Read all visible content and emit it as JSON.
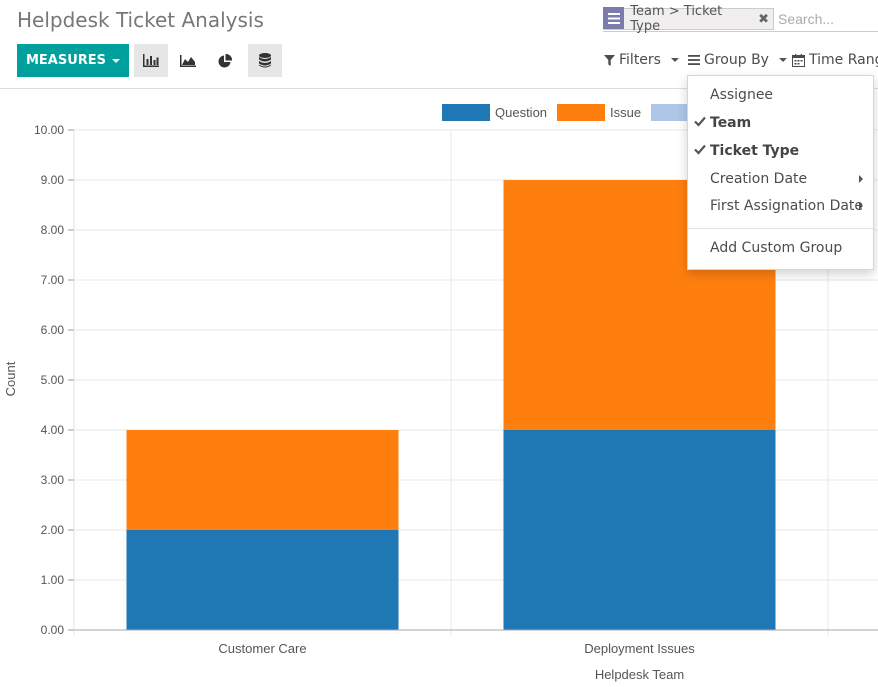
{
  "page": {
    "title": "Helpdesk Ticket Analysis"
  },
  "search": {
    "facet_label": "Team > Ticket Type",
    "placeholder": "Search..."
  },
  "toolbar": {
    "measures_label": "MEASURES",
    "views": [
      {
        "name": "bar-chart",
        "icon": "bar-chart-icon",
        "active": true
      },
      {
        "name": "line-chart",
        "icon": "area-chart-icon",
        "active": false
      },
      {
        "name": "pie-chart",
        "icon": "pie-chart-icon",
        "active": false
      },
      {
        "name": "stacked",
        "icon": "database-icon",
        "active": true
      }
    ],
    "filters_label": "Filters",
    "groupby_label": "Group By",
    "timerange_label": "Time Rang"
  },
  "groupby_menu": {
    "items": [
      {
        "label": "Assignee",
        "checked": false,
        "submenu": false
      },
      {
        "label": "Team",
        "checked": true,
        "submenu": false
      },
      {
        "label": "Ticket Type",
        "checked": true,
        "submenu": false
      },
      {
        "label": "Creation Date",
        "checked": false,
        "submenu": true
      },
      {
        "label": "First Assignation Date",
        "checked": false,
        "submenu": true
      }
    ],
    "custom_group_label": "Add Custom Group"
  },
  "colors": {
    "accent": "#00a09d",
    "question": "#1f77b4",
    "issue": "#ff7f0e",
    "third_series": "#aec7e8"
  },
  "chart_data": {
    "type": "bar",
    "stacked": true,
    "categories": [
      "Customer Care",
      "Deployment Issues"
    ],
    "series": [
      {
        "name": "Question",
        "values": [
          2,
          4
        ],
        "color": "#1f77b4"
      },
      {
        "name": "Issue",
        "values": [
          2,
          5
        ],
        "color": "#ff7f0e"
      },
      {
        "name": "",
        "values": [
          0,
          0
        ],
        "color": "#aec7e8"
      }
    ],
    "xlabel": "Helpdesk Team",
    "ylabel": "Count",
    "ylim": [
      0,
      10
    ],
    "yticks": [
      "0.00",
      "1.00",
      "2.00",
      "3.00",
      "4.00",
      "5.00",
      "6.00",
      "7.00",
      "8.00",
      "9.00",
      "10.00"
    ],
    "grid": true,
    "legend_position": "top-right"
  }
}
